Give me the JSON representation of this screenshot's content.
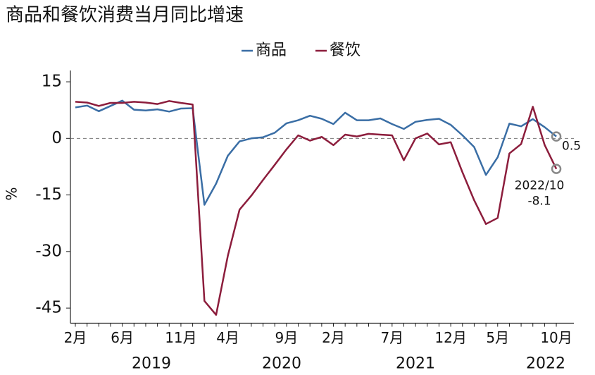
{
  "chart_data": {
    "type": "line",
    "title": "商品和餐饮消费当月同比增速",
    "y_label": "%",
    "categories": [
      "2月",
      null,
      null,
      null,
      "6月",
      null,
      null,
      null,
      null,
      "11月",
      null,
      null,
      null,
      "4月",
      null,
      null,
      null,
      null,
      "9月",
      null,
      null,
      null,
      "2月",
      null,
      null,
      null,
      null,
      "7月",
      null,
      null,
      null,
      null,
      "12月",
      null,
      null,
      null,
      "5月",
      null,
      null,
      null,
      null,
      "10月"
    ],
    "x_groups": [
      "2019",
      "2020",
      "2021",
      "2022"
    ],
    "series": [
      {
        "name": "商品",
        "color": "#3a6ea5",
        "values": [
          8.2,
          8.7,
          7.2,
          8.6,
          10.0,
          7.6,
          7.4,
          7.7,
          7.1,
          7.9,
          8.0,
          -17.6,
          -12.0,
          -4.6,
          -0.8,
          0.0,
          0.3,
          1.5,
          4.0,
          4.8,
          6.0,
          5.2,
          3.8,
          6.8,
          4.8,
          4.8,
          5.3,
          3.8,
          2.5,
          4.4,
          4.9,
          5.2,
          3.6,
          0.8,
          -2.3,
          -9.7,
          -5.0,
          3.9,
          3.2,
          5.1,
          3.0,
          0.5
        ]
      },
      {
        "name": "餐饮",
        "color": "#8c1d3c",
        "values": [
          9.7,
          9.5,
          8.6,
          9.4,
          9.4,
          9.7,
          9.5,
          9.1,
          9.9,
          9.4,
          9.0,
          -43.1,
          -46.8,
          -31.1,
          -18.9,
          -15.2,
          -11.0,
          -7.0,
          -2.9,
          0.8,
          -0.6,
          0.4,
          -1.8,
          1.0,
          0.5,
          1.2,
          1.0,
          0.8,
          -5.8,
          0.0,
          1.3,
          -1.6,
          -1.0,
          -9.0,
          -16.4,
          -22.7,
          -21.1,
          -4.0,
          -1.5,
          8.4,
          -1.7,
          -8.1
        ]
      }
    ],
    "annotations": [
      "0.5",
      "2022/10",
      "-8.1"
    ],
    "ylim": [
      -49,
      18
    ],
    "yticks": [
      15,
      0,
      -15,
      -30,
      -45
    ],
    "zero_line": true,
    "legend": "top"
  }
}
